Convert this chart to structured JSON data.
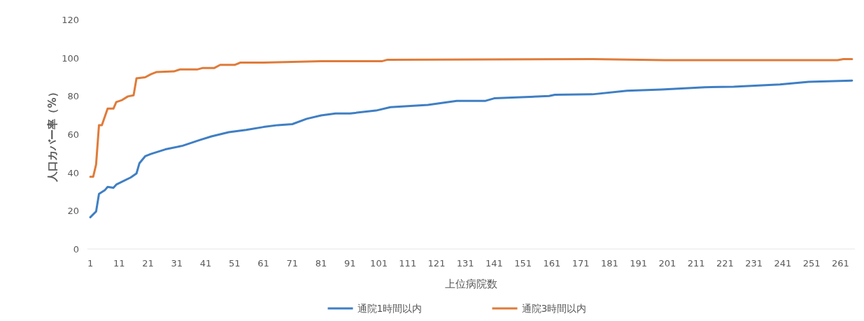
{
  "chart_data": {
    "type": "line",
    "xlabel": "上位病院数",
    "ylabel": "人口カバー率（%）",
    "xlim": [
      0,
      266
    ],
    "xticks": [
      1,
      11,
      21,
      31,
      41,
      51,
      61,
      71,
      81,
      91,
      101,
      111,
      121,
      131,
      141,
      151,
      161,
      171,
      181,
      191,
      201,
      211,
      221,
      231,
      241,
      251,
      261
    ],
    "ylim": [
      0,
      120
    ],
    "yticks": [
      0,
      20,
      40,
      60,
      80,
      100,
      120
    ],
    "grid": false,
    "legend": "bottom",
    "marker": "none",
    "line_style": "solid",
    "series": [
      {
        "name": "通院1時間以内",
        "color": "#3f7fc4",
        "x": [
          1,
          3,
          4,
          6,
          7,
          9,
          10,
          15,
          17,
          18,
          20,
          22,
          27,
          33,
          39,
          43,
          49,
          55,
          61,
          66,
          71,
          76,
          81,
          86,
          91,
          100,
          105,
          118,
          128,
          138,
          141,
          160,
          162,
          175,
          187,
          199,
          214,
          224,
          240,
          250,
          265
        ],
        "values": [
          16.6,
          19.6,
          28.8,
          30.7,
          32.5,
          32,
          33.7,
          37.4,
          39.5,
          44.8,
          48.5,
          49.7,
          52.1,
          54,
          57,
          58.9,
          61.1,
          62.3,
          63.8,
          64.8,
          65.3,
          68.1,
          69.9,
          70.9,
          70.9,
          72.4,
          74.2,
          75.4,
          77.5,
          77.5,
          78.8,
          80,
          80.7,
          80.9,
          82.8,
          83.4,
          84.6,
          84.9,
          86.1,
          87.4,
          88.1
        ]
      },
      {
        "name": "通院3時間以内",
        "color": "#e07b39",
        "x": [
          1,
          2,
          3,
          4,
          5,
          7,
          9,
          10,
          12,
          14,
          16,
          17,
          20,
          22,
          24,
          30,
          32,
          38,
          40,
          44,
          46,
          51,
          53,
          61,
          71,
          81,
          102,
          104,
          175,
          200,
          260,
          262,
          265
        ],
        "values": [
          37.8,
          37.8,
          44.2,
          64.8,
          64.8,
          73.4,
          73.4,
          76.9,
          77.9,
          79.8,
          80.4,
          89.3,
          89.8,
          91.4,
          92.6,
          92.9,
          93.9,
          93.9,
          94.7,
          94.7,
          96.3,
          96.3,
          97.5,
          97.5,
          97.9,
          98.2,
          98.2,
          99,
          99.3,
          98.8,
          98.8,
          99.3,
          99.3
        ]
      }
    ]
  }
}
